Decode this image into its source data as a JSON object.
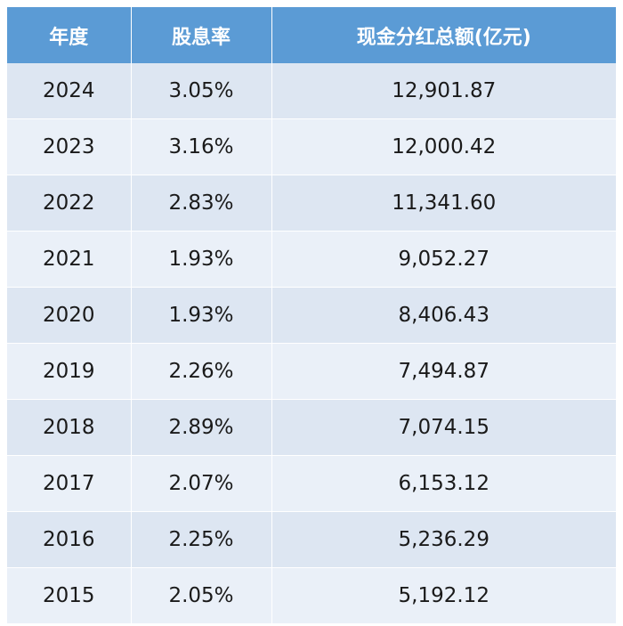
{
  "table": {
    "headers": [
      "年度",
      "股息率",
      "现金分红总额(亿元)"
    ],
    "rows": [
      [
        "2024",
        "3.05%",
        "12,901.87"
      ],
      [
        "2023",
        "3.16%",
        "12,000.42"
      ],
      [
        "2022",
        "2.83%",
        "11,341.60"
      ],
      [
        "2021",
        "1.93%",
        "9,052.27"
      ],
      [
        "2020",
        "1.93%",
        "8,406.43"
      ],
      [
        "2019",
        "2.26%",
        "7,494.87"
      ],
      [
        "2018",
        "2.89%",
        "7,074.15"
      ],
      [
        "2017",
        "2.07%",
        "6,153.12"
      ],
      [
        "2016",
        "2.25%",
        "5,236.29"
      ],
      [
        "2015",
        "2.05%",
        "5,192.12"
      ]
    ]
  },
  "colors": {
    "header_bg": "#5b9bd5",
    "header_text": "#ffffff",
    "row_bg_a": "#dde6f2",
    "row_bg_b": "#eaf0f8",
    "cell_text": "#1a1a1a"
  }
}
